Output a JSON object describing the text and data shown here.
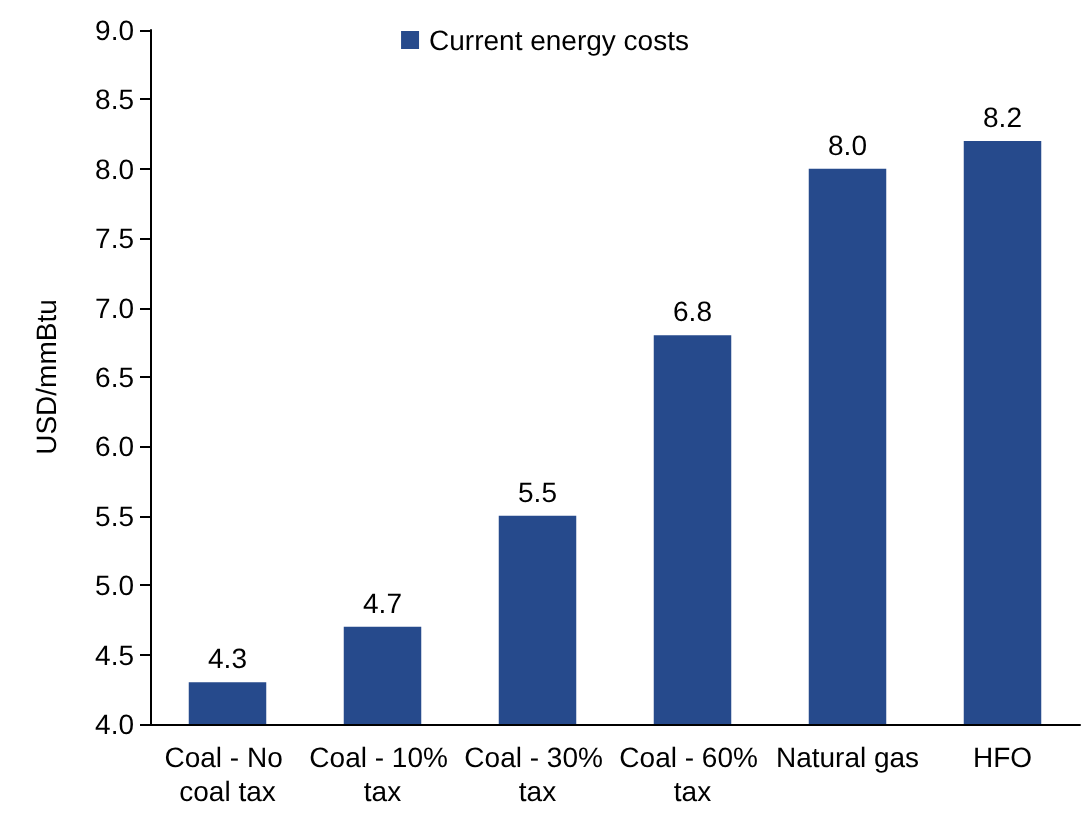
{
  "chart_data": {
    "type": "bar",
    "ylabel": "USD/mmBtu",
    "categories": [
      "Coal - No coal tax",
      "Coal - 10% tax",
      "Coal - 30% tax",
      "Coal - 60% tax",
      "Natural gas",
      "HFO"
    ],
    "series": [
      {
        "name": "Current energy costs",
        "color": "#264a8c",
        "values": [
          4.3,
          4.7,
          5.5,
          6.8,
          8.0,
          8.2
        ],
        "value_labels": [
          "4.3",
          "4.7",
          "5.5",
          "6.8",
          "8.0",
          "8.2"
        ]
      }
    ],
    "ylim": [
      4,
      9
    ],
    "yticks": [
      {
        "value": 4,
        "label": "4.0"
      },
      4.5,
      {
        "value": 5,
        "label": "5.0"
      },
      5.5,
      {
        "value": 6,
        "label": "6.0"
      },
      6.5,
      {
        "value": 7,
        "label": "7.0"
      },
      7.5,
      {
        "value": 8,
        "label": "8.0"
      },
      8.5,
      {
        "value": 9,
        "label": "9.0"
      }
    ],
    "grid": false,
    "legend": "top"
  }
}
